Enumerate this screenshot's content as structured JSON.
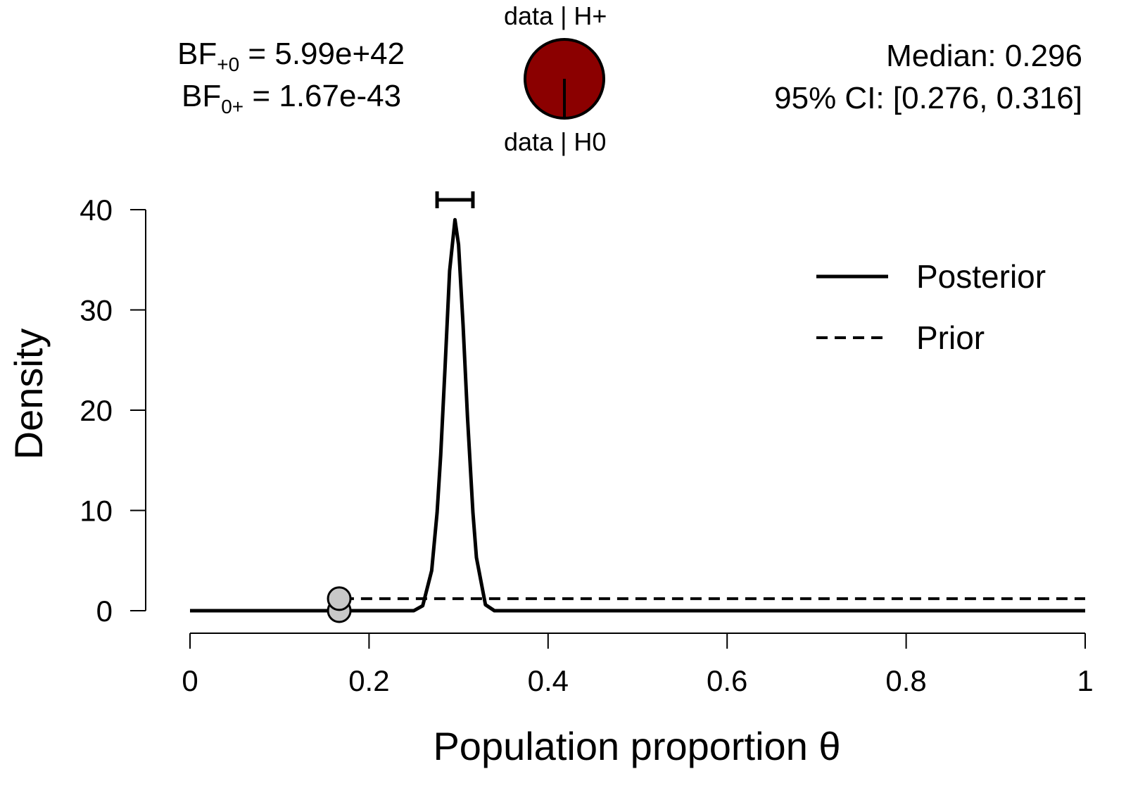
{
  "bayes_factors": {
    "bf10_label": "BF",
    "bf10_sub": "+0",
    "bf10_value": "5.99e+42",
    "bf01_label": "BF",
    "bf01_sub": "0+",
    "bf01_value": "1.67e-43"
  },
  "pie": {
    "top_label": "data | H+",
    "bottom_label": "data | H0",
    "fill_color": "#8b0000",
    "h_plus_fraction": 1.0
  },
  "summary": {
    "median": "Median: 0.296",
    "ci": "95% CI: [0.276, 0.316]"
  },
  "chart_data": {
    "type": "line",
    "xlabel": "Population proportion θ",
    "ylabel": "Density",
    "xlim": [
      0,
      1
    ],
    "ylim": [
      0,
      40
    ],
    "x_ticks": [
      "0",
      "0.2",
      "0.4",
      "0.6",
      "0.8",
      "1"
    ],
    "y_ticks": [
      "0",
      "10",
      "20",
      "30",
      "40"
    ],
    "legend_position": "top-right",
    "series": [
      {
        "name": "Posterior",
        "style": "solid",
        "x": [
          0,
          0.25,
          0.26,
          0.27,
          0.276,
          0.28,
          0.285,
          0.29,
          0.296,
          0.3,
          0.305,
          0.31,
          0.316,
          0.32,
          0.33,
          0.34,
          1
        ],
        "y": [
          0,
          0,
          0.5,
          4.0,
          9.8,
          15.5,
          24.4,
          33.9,
          39.0,
          36.5,
          28.5,
          19.3,
          9.8,
          5.3,
          0.6,
          0,
          0
        ]
      },
      {
        "name": "Prior",
        "style": "dashed",
        "x": [
          0,
          0.1667,
          0.1667,
          1
        ],
        "y": [
          0,
          0,
          1.2,
          1.2
        ]
      }
    ],
    "points": [
      {
        "x": 0.1667,
        "y": 0
      },
      {
        "x": 0.1667,
        "y": 1.2
      }
    ],
    "ci_bar": {
      "low": 0.276,
      "high": 0.316
    }
  }
}
